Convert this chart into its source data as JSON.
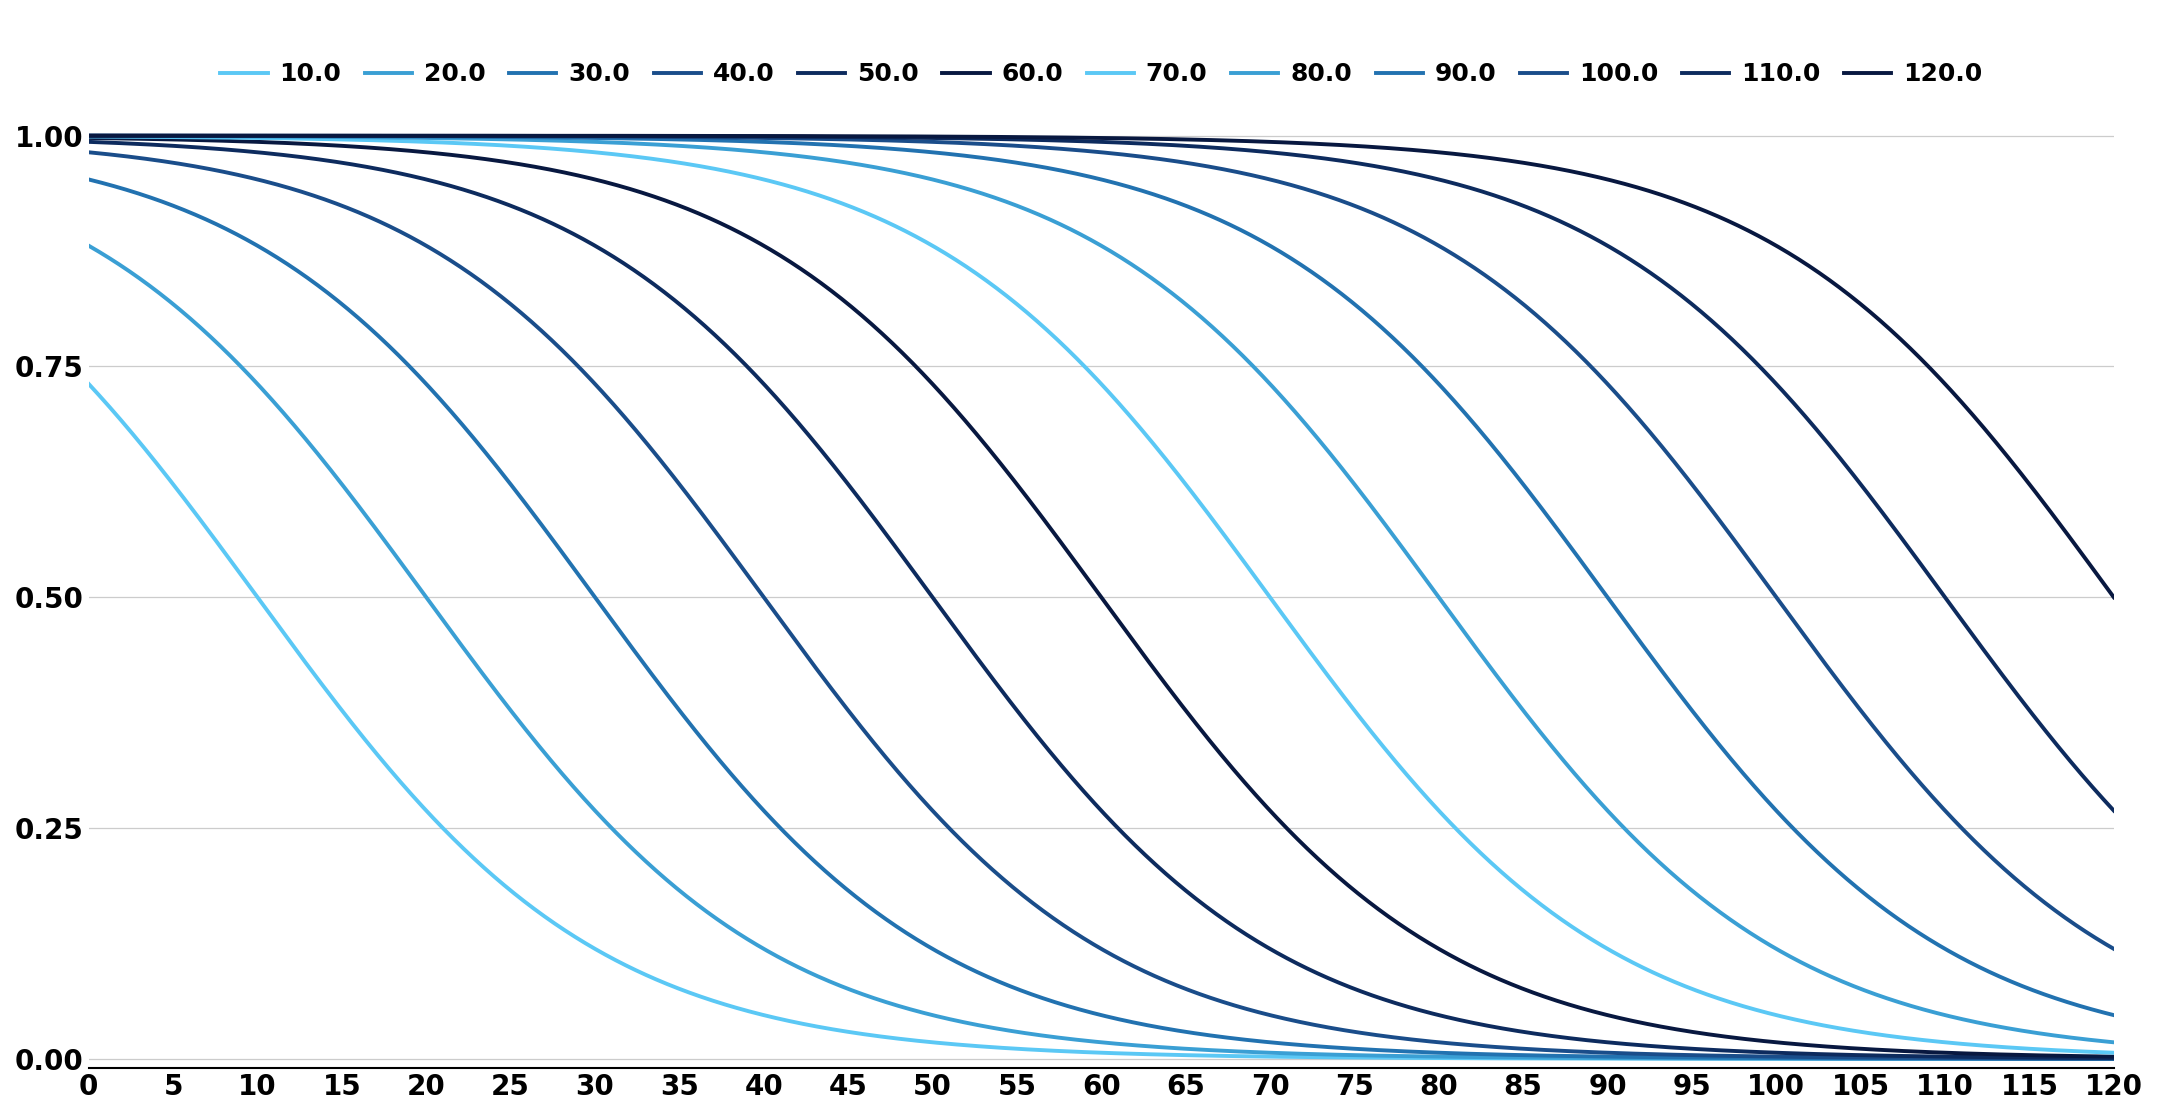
{
  "cutoffs": [
    10.0,
    20.0,
    30.0,
    40.0,
    50.0,
    60.0,
    70.0,
    80.0,
    90.0,
    100.0,
    110.0,
    120.0
  ],
  "std": 10.0,
  "x_min": 0,
  "x_max": 120,
  "x_ticks": [
    0,
    5,
    10,
    15,
    20,
    25,
    30,
    35,
    40,
    45,
    50,
    55,
    60,
    65,
    70,
    75,
    80,
    85,
    90,
    95,
    100,
    105,
    110,
    115,
    120
  ],
  "y_ticks": [
    0.0,
    0.25,
    0.5,
    0.75,
    1.0
  ],
  "y_tick_labels": [
    "0.00",
    "0.25",
    "0.50",
    "0.75",
    "1.00"
  ],
  "colors": [
    "#5bc8f5",
    "#3a9fd4",
    "#2272b0",
    "#1a4d8a",
    "#0d2b5e",
    "#081840",
    "#5bc8f5",
    "#3a9fd4",
    "#2272b0",
    "#1a4d8a",
    "#0d2b5e",
    "#081840"
  ],
  "background_color": "#ffffff",
  "line_width": 2.8,
  "figsize": [
    21.76,
    11.16
  ],
  "dpi": 100
}
